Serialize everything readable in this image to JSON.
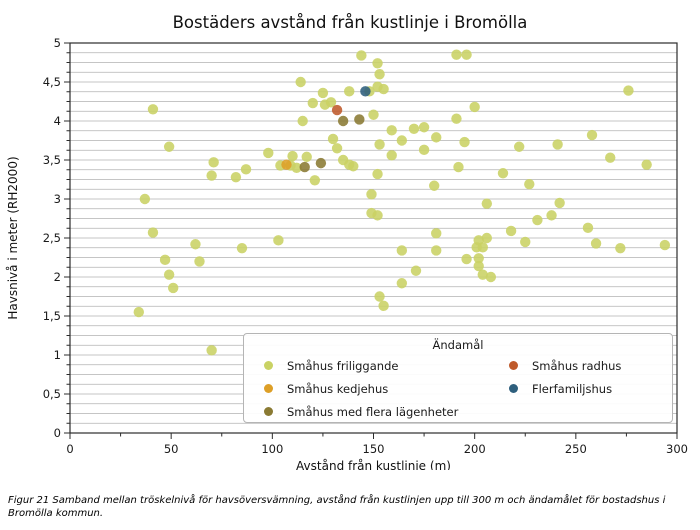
{
  "title": "Bostäders avstånd från kustlinje i Bromölla",
  "caption": "Figur 21 Samband mellan tröskelnivå för havsöversvämning, avstånd från kustlinjen upp till 300 m och ändamålet för bostadshus i Bromölla kommun.",
  "chart_data": {
    "type": "scatter",
    "title": "Bostäders avstånd från kustlinje i Bromölla",
    "xlabel": "Avstånd från kustlinje (m)",
    "ylabel": "Havsnivå i meter (RH2000)",
    "xlim": [
      0,
      300
    ],
    "ylim": [
      0,
      5
    ],
    "x_major_ticks": [
      0,
      50,
      100,
      150,
      200,
      250,
      300
    ],
    "x_tick_labels": [
      "0",
      "50",
      "100",
      "150",
      "200",
      "250",
      "300"
    ],
    "x_minor_step": 25,
    "y_major_ticks": [
      0,
      0.5,
      1,
      1.5,
      2,
      2.5,
      3,
      3.5,
      4,
      4.5,
      5
    ],
    "y_tick_labels": [
      "0",
      "0,5",
      "1",
      "1,5",
      "2",
      "2,5",
      "3",
      "3,5",
      "4",
      "4,5",
      "5"
    ],
    "y_minor_step": 0.125,
    "grid": "horizontal-minor",
    "grid_color": "#b2b2b2",
    "spine_color": "#2b2b2b",
    "legend_title": "Ändamål",
    "legend_position": "lower right",
    "marker_radius": 5.2,
    "marker_opacity": 0.88,
    "series": [
      {
        "name": "Småhus friliggande",
        "color": "#c9d264",
        "points": [
          [
            144,
            4.84
          ],
          [
            191,
            4.85
          ],
          [
            196,
            4.85
          ],
          [
            152,
            4.74
          ],
          [
            153,
            4.6
          ],
          [
            114,
            4.5
          ],
          [
            152,
            4.44
          ],
          [
            155,
            4.41
          ],
          [
            148,
            4.38
          ],
          [
            138,
            4.38
          ],
          [
            125,
            4.36
          ],
          [
            276,
            4.39
          ],
          [
            120,
            4.23
          ],
          [
            126,
            4.21
          ],
          [
            129,
            4.24
          ],
          [
            41,
            4.15
          ],
          [
            150,
            4.08
          ],
          [
            115,
            4.0
          ],
          [
            191,
            4.03
          ],
          [
            200,
            4.18
          ],
          [
            159,
            3.88
          ],
          [
            170,
            3.9
          ],
          [
            175,
            3.92
          ],
          [
            164,
            3.75
          ],
          [
            153,
            3.7
          ],
          [
            181,
            3.79
          ],
          [
            195,
            3.73
          ],
          [
            175,
            3.63
          ],
          [
            159,
            3.56
          ],
          [
            222,
            3.67
          ],
          [
            241,
            3.7
          ],
          [
            258,
            3.82
          ],
          [
            267,
            3.53
          ],
          [
            285,
            3.44
          ],
          [
            192,
            3.41
          ],
          [
            130,
            3.77
          ],
          [
            132,
            3.65
          ],
          [
            49,
            3.67
          ],
          [
            98,
            3.59
          ],
          [
            110,
            3.55
          ],
          [
            117,
            3.54
          ],
          [
            104,
            3.43
          ],
          [
            109,
            3.43
          ],
          [
            112,
            3.4
          ],
          [
            135,
            3.5
          ],
          [
            138,
            3.44
          ],
          [
            140,
            3.42
          ],
          [
            71,
            3.47
          ],
          [
            70,
            3.3
          ],
          [
            82,
            3.28
          ],
          [
            87,
            3.38
          ],
          [
            121,
            3.24
          ],
          [
            152,
            3.32
          ],
          [
            214,
            3.33
          ],
          [
            227,
            3.19
          ],
          [
            180,
            3.17
          ],
          [
            37,
            3.0
          ],
          [
            149,
            3.06
          ],
          [
            206,
            2.94
          ],
          [
            242,
            2.95
          ],
          [
            149,
            2.82
          ],
          [
            152,
            2.79
          ],
          [
            238,
            2.79
          ],
          [
            231,
            2.73
          ],
          [
            256,
            2.63
          ],
          [
            218,
            2.59
          ],
          [
            181,
            2.56
          ],
          [
            41,
            2.57
          ],
          [
            62,
            2.42
          ],
          [
            85,
            2.37
          ],
          [
            103,
            2.47
          ],
          [
            206,
            2.5
          ],
          [
            202,
            2.47
          ],
          [
            164,
            2.34
          ],
          [
            181,
            2.34
          ],
          [
            201,
            2.38
          ],
          [
            204,
            2.38
          ],
          [
            225,
            2.45
          ],
          [
            260,
            2.43
          ],
          [
            272,
            2.37
          ],
          [
            294,
            2.41
          ],
          [
            196,
            2.23
          ],
          [
            202,
            2.24
          ],
          [
            202,
            2.14
          ],
          [
            204,
            2.03
          ],
          [
            208,
            2.0
          ],
          [
            171,
            2.08
          ],
          [
            164,
            1.92
          ],
          [
            153,
            1.75
          ],
          [
            155,
            1.63
          ],
          [
            47,
            2.22
          ],
          [
            64,
            2.2
          ],
          [
            49,
            2.03
          ],
          [
            51,
            1.86
          ],
          [
            34,
            1.55
          ],
          [
            70,
            1.06
          ]
        ]
      },
      {
        "name": "Småhus kedjehus",
        "color": "#dd9f27",
        "points": [
          [
            107,
            3.44
          ]
        ]
      },
      {
        "name": "Småhus med flera lägenheter",
        "color": "#8a7a33",
        "points": [
          [
            135,
            4.0
          ],
          [
            143,
            4.02
          ],
          [
            116,
            3.41
          ],
          [
            124,
            3.46
          ]
        ]
      },
      {
        "name": "Småhus radhus",
        "color": "#bf5a2b",
        "points": [
          [
            132,
            4.14
          ]
        ]
      },
      {
        "name": "Flerfamiljshus",
        "color": "#2e5f7d",
        "points": [
          [
            146,
            4.38
          ]
        ]
      }
    ]
  }
}
